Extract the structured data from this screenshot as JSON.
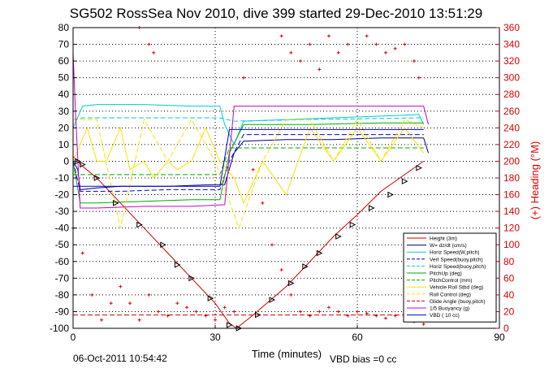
{
  "chart_data": {
    "type": "line",
    "title": "SG502 RossSea Nov 2010, dive 399 started 29-Dec-2010 13:51:29",
    "xlabel": "Time (minutes)",
    "ylabel_right": "(+) Heading (°M)",
    "xlim": [
      0,
      90
    ],
    "ylim": [
      -100,
      80
    ],
    "ylim_right": [
      0,
      360
    ],
    "x_ticks": [
      0,
      30,
      60,
      90
    ],
    "y_ticks": [
      -100,
      -90,
      -80,
      -70,
      -60,
      -50,
      -40,
      -30,
      -20,
      -10,
      0,
      10,
      20,
      30,
      40,
      50,
      60,
      70,
      80
    ],
    "y_ticks_right": [
      0,
      20,
      40,
      60,
      80,
      100,
      120,
      140,
      160,
      180,
      200,
      220,
      240,
      260,
      280,
      300,
      320,
      340,
      360
    ],
    "grid": true,
    "legend_position": "bottom-right",
    "footer_left": "06-Oct-2011 10:54:42",
    "footer_right": "VBD bias =0 cc",
    "series": [
      {
        "name": "Height (3m)",
        "color": "#cc0000",
        "style": "solid",
        "x": [
          0,
          2,
          5,
          10,
          15,
          20,
          25,
          30,
          33,
          34.5,
          38,
          45,
          50,
          55,
          60,
          65,
          70,
          74
        ],
        "y": [
          3,
          -3,
          -10,
          -25,
          -40,
          -55,
          -70,
          -85,
          -97,
          -100,
          -92,
          -75,
          -60,
          -45,
          -32,
          -18,
          -8,
          0
        ]
      },
      {
        "name": "W= dz/dt (cm/s)",
        "color": "#000080",
        "style": "solid",
        "x": [
          0,
          1,
          1.5,
          5,
          10,
          20,
          30,
          32,
          34,
          36,
          45,
          55,
          65,
          74,
          75
        ],
        "y": [
          0,
          -5,
          -17,
          -16,
          -15,
          -15,
          -14,
          -14,
          5,
          12,
          13,
          13,
          14,
          14,
          5
        ]
      },
      {
        "name": "Horiz Speed(W,pitch)",
        "color": "#00cccc",
        "style": "solid",
        "x": [
          0,
          2,
          5,
          15,
          25,
          31,
          32,
          34,
          36,
          45,
          55,
          65,
          73,
          74
        ],
        "y": [
          20,
          33,
          34,
          34,
          33,
          33,
          22,
          10,
          24,
          25,
          26,
          27,
          28,
          22
        ]
      },
      {
        "name": "Vert Speed(buoy,pitch)",
        "color": "#0000cc",
        "style": "dashed",
        "x": [
          0,
          1.5,
          10,
          20,
          31,
          33,
          36,
          50,
          65,
          74
        ],
        "y": [
          0,
          -18,
          -18,
          -17,
          -17,
          0,
          16,
          16,
          16,
          16
        ]
      },
      {
        "name": "Horiz Speed(buoy,pitch)",
        "color": "#00cccc",
        "style": "dashed",
        "x": [
          0,
          2,
          15,
          31,
          34,
          50,
          74
        ],
        "y": [
          25,
          26,
          26,
          26,
          24,
          25,
          26
        ]
      },
      {
        "name": "PitchUp (deg)",
        "color": "#00aa00",
        "style": "solid",
        "x": [
          0,
          1.5,
          5,
          15,
          25,
          31,
          33,
          36,
          50,
          65,
          74
        ],
        "y": [
          0,
          -25,
          -25,
          -24,
          -23,
          -23,
          5,
          22,
          22,
          23,
          23
        ]
      },
      {
        "name": "PitchControl (mm)",
        "color": "#00aa00",
        "style": "dashed",
        "x": [
          0,
          2,
          31,
          33,
          74
        ],
        "y": [
          -8,
          -8,
          -8,
          8,
          8
        ]
      },
      {
        "name": "Vehicle Roll Stbd (deg)",
        "color": "#ffe000",
        "style": "solid",
        "x": [
          0,
          3,
          5,
          7,
          10,
          12,
          15,
          17,
          20,
          22,
          25,
          28,
          31,
          34,
          36,
          40,
          45,
          50,
          55,
          60,
          65,
          70,
          74
        ],
        "y": [
          0,
          20,
          0,
          0,
          20,
          -5,
          0,
          -10,
          0,
          -5,
          0,
          20,
          0,
          -10,
          -25,
          0,
          -20,
          20,
          0,
          20,
          0,
          20,
          5
        ]
      },
      {
        "name": "Roll Control (deg)",
        "color": "#ffe000",
        "style": "dashed",
        "x": [
          0,
          5,
          10,
          15,
          20,
          25,
          30,
          35,
          40,
          45,
          50,
          55,
          60,
          65,
          70,
          74
        ],
        "y": [
          25,
          25,
          -40,
          25,
          0,
          25,
          0,
          -40,
          0,
          25,
          25,
          0,
          25,
          0,
          25,
          20
        ]
      },
      {
        "name": "Glide Angle (buoy,pitch)",
        "color": "#cc0000",
        "style": "dashed",
        "x": [
          0,
          2,
          31,
          34,
          74
        ],
        "y": [
          -92,
          -92,
          -92,
          -92,
          -92
        ]
      },
      {
        "name": "1/5 Buoyancy (g)",
        "color": "#cc00cc",
        "style": "solid",
        "x": [
          0,
          0.5,
          1.5,
          5,
          15,
          25,
          32,
          34,
          40,
          55,
          74,
          75
        ],
        "y": [
          65,
          30,
          -28,
          -28,
          -27,
          -27,
          -26,
          33,
          33,
          33,
          33,
          22
        ]
      },
      {
        "name": "VBD ( 10 cc)",
        "color": "#0000cc",
        "style": "solid",
        "x": [
          0,
          1.5,
          31,
          33,
          74
        ],
        "y": [
          -15,
          -15,
          -15,
          19,
          19
        ]
      },
      {
        "name": "Heading",
        "color": "#dd0000",
        "style": "markers",
        "axis": "right",
        "x": [
          0,
          2,
          4,
          6,
          8,
          10,
          12,
          14,
          16,
          18,
          20,
          22,
          24,
          26,
          28,
          30,
          32,
          34,
          36,
          38,
          40,
          42,
          44,
          46,
          48,
          50,
          52,
          54,
          56,
          58,
          60,
          62,
          64,
          66,
          68,
          70,
          72,
          74
        ],
        "y": [
          120,
          90,
          40,
          10,
          30,
          50,
          30,
          10,
          40,
          20,
          15,
          30,
          25,
          20,
          15,
          10,
          25,
          20,
          300,
          190,
          150,
          100,
          70,
          40,
          20,
          15,
          20,
          25,
          20,
          15,
          20,
          18,
          15,
          12,
          15,
          10,
          8,
          5
        ]
      }
    ],
    "heading_cloud_markers": [
      {
        "x": 14,
        "y": 360
      },
      {
        "x": 16,
        "y": 340
      },
      {
        "x": 17,
        "y": 330
      },
      {
        "x": 44,
        "y": 350
      },
      {
        "x": 46,
        "y": 330
      },
      {
        "x": 48,
        "y": 320
      },
      {
        "x": 50,
        "y": 340
      },
      {
        "x": 52,
        "y": 310
      },
      {
        "x": 54,
        "y": 350
      },
      {
        "x": 56,
        "y": 330
      },
      {
        "x": 58,
        "y": 340
      },
      {
        "x": 62,
        "y": 350
      },
      {
        "x": 64,
        "y": 340
      },
      {
        "x": 66,
        "y": 330
      },
      {
        "x": 68,
        "y": 335
      },
      {
        "x": 70,
        "y": 340
      },
      {
        "x": 72,
        "y": 320
      },
      {
        "x": 73,
        "y": 300
      }
    ],
    "triangle_markers": [
      {
        "x": 1,
        "y": 0
      },
      {
        "x": 2,
        "y": -2
      },
      {
        "x": 5,
        "y": -10
      },
      {
        "x": 9,
        "y": -25
      },
      {
        "x": 14,
        "y": -38
      },
      {
        "x": 19,
        "y": -50
      },
      {
        "x": 22,
        "y": -62
      },
      {
        "x": 25,
        "y": -70
      },
      {
        "x": 29,
        "y": -82
      },
      {
        "x": 33,
        "y": -98
      },
      {
        "x": 35,
        "y": -100
      },
      {
        "x": 39,
        "y": -92
      },
      {
        "x": 42,
        "y": -83
      },
      {
        "x": 46,
        "y": -73
      },
      {
        "x": 49,
        "y": -63
      },
      {
        "x": 52,
        "y": -55
      },
      {
        "x": 56,
        "y": -45
      },
      {
        "x": 59,
        "y": -38
      },
      {
        "x": 63,
        "y": -28
      },
      {
        "x": 67,
        "y": -20
      },
      {
        "x": 70,
        "y": -12
      },
      {
        "x": 73,
        "y": -4
      }
    ]
  }
}
